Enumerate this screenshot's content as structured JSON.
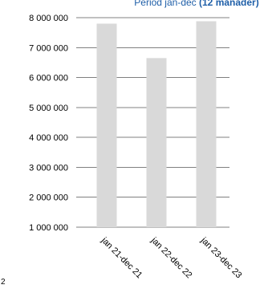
{
  "chart_data": {
    "type": "bar",
    "title_plain": "Period jan-dec",
    "title_bold": "(12 månader)",
    "categories": [
      "jan 21-dec 21",
      "jan 22-dec 22",
      "jan 23-dec 23"
    ],
    "values": [
      7800000,
      6650000,
      7880000
    ],
    "ylim": [
      1000000,
      8000000
    ],
    "yticks": [
      1000000,
      2000000,
      3000000,
      4000000,
      5000000,
      6000000,
      7000000,
      8000000
    ],
    "ytick_labels": [
      "1 000 000",
      "2 000 000",
      "3 000 000",
      "4 000 000",
      "5 000 000",
      "6 000 000",
      "7 000 000",
      "8 000 000"
    ],
    "grid": true,
    "legend": "none",
    "bar_color": "#d9d9d9",
    "grid_color": "#808080",
    "title_color": "#1f5fa8"
  },
  "corner_mark": "2"
}
